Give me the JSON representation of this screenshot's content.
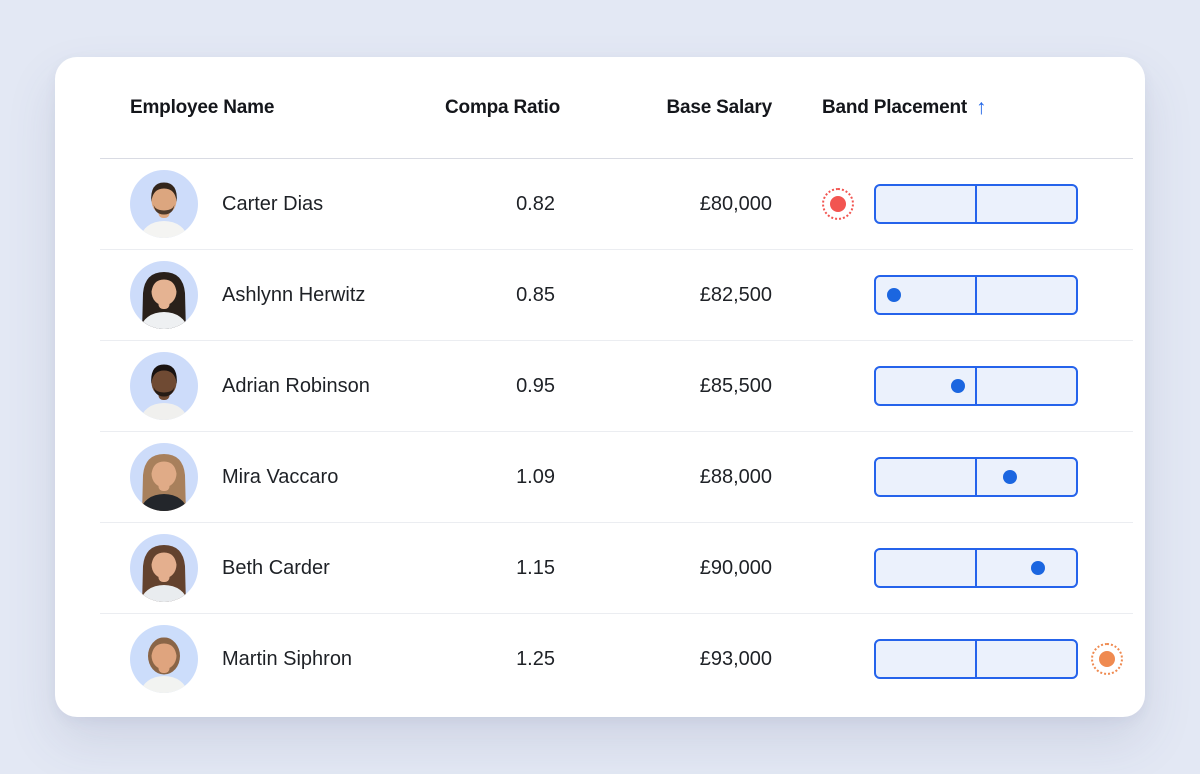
{
  "colors": {
    "page_bg": "#e3e8f4",
    "card_bg": "#ffffff",
    "band_fill": "#ebf1fc",
    "band_border": "#2563eb",
    "dot_in_band": "#1b66e0",
    "dot_below": "#f25551",
    "dot_above": "#ef8a50",
    "row_divider": "#ebedf1",
    "header_divider": "#d9dbe3",
    "text": "#1e2126",
    "header_text": "#14161b",
    "sort_arrow": "#2166e8"
  },
  "table": {
    "columns": [
      {
        "id": "employee_name",
        "label": "Employee Name"
      },
      {
        "id": "compa_ratio",
        "label": "Compa Ratio"
      },
      {
        "id": "base_salary",
        "label": "Base Salary"
      },
      {
        "id": "band_placement",
        "label": "Band Placement",
        "sorted": true,
        "sort_direction": "ascending",
        "sort_indicator": "↑"
      }
    ],
    "rows": [
      {
        "employee_name": "Carter Dias",
        "compa_ratio": "0.82",
        "base_salary": "£80,000",
        "band_placement": {
          "status": "below-band",
          "marker": "red-dashed-dot",
          "position_pct": null
        },
        "avatar": {
          "bg": "#cddcfa",
          "skin": "#dca67f",
          "hair": "#33261c",
          "style": "short",
          "shirt": "#f4f4f2",
          "beard": true
        }
      },
      {
        "employee_name": "Ashlynn Herwitz",
        "compa_ratio": "0.85",
        "base_salary": "£82,500",
        "band_placement": {
          "status": "in-band",
          "marker": "blue-dot",
          "position_pct": 9
        },
        "avatar": {
          "bg": "#cddcfa",
          "skin": "#e5b392",
          "hair": "#29201a",
          "style": "long",
          "shirt": "#eef0f2",
          "beard": false
        }
      },
      {
        "employee_name": "Adrian Robinson",
        "compa_ratio": "0.95",
        "base_salary": "£85,500",
        "band_placement": {
          "status": "in-band",
          "marker": "blue-dot",
          "position_pct": 41
        },
        "avatar": {
          "bg": "#cddcfa",
          "skin": "#6f4a33",
          "hair": "#191311",
          "style": "short",
          "shirt": "#f0f0ee",
          "beard": true
        }
      },
      {
        "employee_name": "Mira Vaccaro",
        "compa_ratio": "1.09",
        "base_salary": "£88,000",
        "band_placement": {
          "status": "in-band",
          "marker": "blue-dot",
          "position_pct": 67
        },
        "avatar": {
          "bg": "#cddcfa",
          "skin": "#e0ab87",
          "hair": "#a8805c",
          "style": "long",
          "shirt": "#23262b",
          "beard": false
        }
      },
      {
        "employee_name": "Beth Carder",
        "compa_ratio": "1.15",
        "base_salary": "£90,000",
        "band_placement": {
          "status": "in-band",
          "marker": "blue-dot",
          "position_pct": 81
        },
        "avatar": {
          "bg": "#cddcfa",
          "skin": "#e4af8e",
          "hair": "#63422e",
          "style": "long",
          "shirt": "#e9ecef",
          "beard": false
        }
      },
      {
        "employee_name": "Martin Siphron",
        "compa_ratio": "1.25",
        "base_salary": "£93,000",
        "band_placement": {
          "status": "above-band",
          "marker": "orange-dashed-dot",
          "position_pct": null
        },
        "avatar": {
          "bg": "#ccddfb",
          "skin": "#dfa47e",
          "hair": "#8a6547",
          "style": "medium",
          "shirt": "#f2f3f1",
          "beard": false
        }
      }
    ]
  }
}
